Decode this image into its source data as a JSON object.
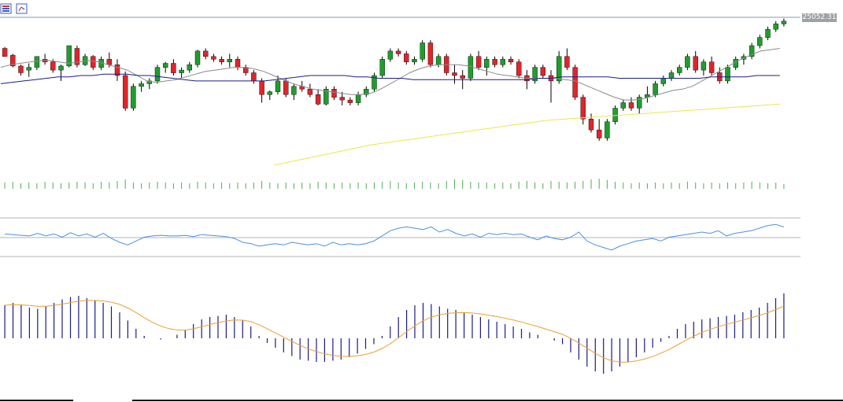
{
  "toolbar": {
    "icons": [
      "bar-list-icon",
      "chart-layout-icon"
    ]
  },
  "price_label": "25052.31",
  "colors": {
    "bull": "#1e9e2c",
    "bear": "#e0252a",
    "wick": "#000000",
    "ma_fast": "#8a8a8a",
    "ma_mid": "#1c1c8c",
    "ma_slow": "#e8e84a",
    "volume": "#4caf50",
    "rsi": "#4a90e2",
    "hist": "#1a1a8c",
    "signal": "#e8a030",
    "level": "#b0b4b8"
  },
  "chart_data": {
    "type": "candlestick",
    "y_range": [
      0,
      100
    ],
    "candles": [
      [
        86,
        87,
        80,
        80
      ],
      [
        81,
        82,
        72,
        73
      ],
      [
        73,
        74,
        66,
        68
      ],
      [
        70,
        75,
        65,
        72
      ],
      [
        72,
        80,
        70,
        80
      ],
      [
        78,
        82,
        74,
        76
      ],
      [
        76,
        78,
        68,
        70
      ],
      [
        70,
        74,
        62,
        73
      ],
      [
        73,
        88,
        72,
        88
      ],
      [
        86,
        88,
        72,
        74
      ],
      [
        74,
        82,
        73,
        80
      ],
      [
        80,
        81,
        70,
        72
      ],
      [
        72,
        80,
        70,
        78
      ],
      [
        78,
        83,
        72,
        74
      ],
      [
        74,
        78,
        62,
        66
      ],
      [
        66,
        69,
        40,
        42
      ],
      [
        42,
        60,
        40,
        58
      ],
      [
        58,
        62,
        54,
        60
      ],
      [
        60,
        64,
        56,
        62
      ],
      [
        62,
        74,
        60,
        72
      ],
      [
        72,
        76,
        68,
        75
      ],
      [
        75,
        78,
        66,
        68
      ],
      [
        68,
        72,
        64,
        70
      ],
      [
        70,
        76,
        68,
        74
      ],
      [
        74,
        85,
        72,
        84
      ],
      [
        84,
        86,
        78,
        80
      ],
      [
        80,
        82,
        76,
        78
      ],
      [
        78,
        80,
        74,
        76
      ],
      [
        76,
        82,
        72,
        78
      ],
      [
        78,
        80,
        70,
        72
      ],
      [
        72,
        74,
        66,
        68
      ],
      [
        68,
        70,
        60,
        62
      ],
      [
        62,
        64,
        46,
        52
      ],
      [
        52,
        55,
        48,
        54
      ],
      [
        54,
        66,
        52,
        62
      ],
      [
        62,
        64,
        50,
        52
      ],
      [
        52,
        60,
        48,
        58
      ],
      [
        58,
        62,
        54,
        56
      ],
      [
        56,
        60,
        50,
        52
      ],
      [
        52,
        56,
        44,
        45
      ],
      [
        45,
        58,
        44,
        56
      ],
      [
        56,
        58,
        48,
        50
      ],
      [
        50,
        54,
        44,
        48
      ],
      [
        48,
        50,
        44,
        46
      ],
      [
        46,
        54,
        44,
        52
      ],
      [
        52,
        58,
        50,
        56
      ],
      [
        56,
        68,
        54,
        66
      ],
      [
        66,
        80,
        64,
        78
      ],
      [
        78,
        86,
        76,
        84
      ],
      [
        84,
        86,
        80,
        82
      ],
      [
        82,
        84,
        74,
        76
      ],
      [
        76,
        80,
        74,
        78
      ],
      [
        78,
        92,
        76,
        90
      ],
      [
        90,
        92,
        72,
        74
      ],
      [
        74,
        82,
        72,
        80
      ],
      [
        80,
        82,
        66,
        68
      ],
      [
        68,
        74,
        60,
        66
      ],
      [
        66,
        70,
        56,
        64
      ],
      [
        64,
        82,
        62,
        80
      ],
      [
        80,
        84,
        70,
        72
      ],
      [
        72,
        80,
        66,
        78
      ],
      [
        78,
        80,
        72,
        74
      ],
      [
        74,
        80,
        72,
        78
      ],
      [
        78,
        80,
        74,
        76
      ],
      [
        76,
        78,
        64,
        66
      ],
      [
        66,
        70,
        56,
        62
      ],
      [
        62,
        74,
        60,
        72
      ],
      [
        72,
        74,
        64,
        66
      ],
      [
        66,
        70,
        46,
        62
      ],
      [
        62,
        84,
        60,
        80
      ],
      [
        80,
        86,
        70,
        72
      ],
      [
        72,
        74,
        48,
        50
      ],
      [
        50,
        52,
        30,
        34
      ],
      [
        34,
        38,
        24,
        26
      ],
      [
        26,
        34,
        18,
        20
      ],
      [
        20,
        34,
        18,
        32
      ],
      [
        32,
        44,
        30,
        42
      ],
      [
        42,
        48,
        40,
        46
      ],
      [
        46,
        50,
        40,
        42
      ],
      [
        42,
        52,
        38,
        50
      ],
      [
        50,
        58,
        46,
        52
      ],
      [
        52,
        62,
        50,
        60
      ],
      [
        60,
        66,
        58,
        64
      ],
      [
        64,
        70,
        62,
        68
      ],
      [
        68,
        74,
        66,
        72
      ],
      [
        72,
        82,
        70,
        80
      ],
      [
        80,
        84,
        68,
        70
      ],
      [
        70,
        78,
        66,
        76
      ],
      [
        76,
        80,
        66,
        68
      ],
      [
        68,
        72,
        60,
        62
      ],
      [
        62,
        74,
        60,
        72
      ],
      [
        72,
        80,
        70,
        78
      ],
      [
        78,
        82,
        74,
        80
      ],
      [
        80,
        90,
        78,
        88
      ],
      [
        88,
        96,
        86,
        94
      ],
      [
        94,
        102,
        92,
        100
      ],
      [
        100,
        106,
        98,
        104
      ],
      [
        104,
        108,
        102,
        106
      ]
    ],
    "ma_fast": [
      72,
      74,
      75,
      76,
      77,
      77,
      76,
      75,
      76,
      77,
      76,
      74,
      72,
      70,
      66,
      62,
      61,
      62,
      63,
      65,
      67,
      69,
      70,
      71,
      72,
      72,
      71,
      69,
      66,
      63,
      60,
      58,
      56,
      55,
      54,
      53,
      52,
      52,
      53,
      56,
      60,
      64,
      68,
      71,
      73,
      74,
      74,
      74,
      73,
      71,
      69,
      67,
      66,
      65,
      64,
      64,
      64,
      64,
      63,
      62,
      59,
      56,
      53,
      50,
      48,
      48,
      49,
      51,
      53,
      55,
      56,
      58,
      62,
      66,
      70,
      74,
      78,
      81,
      84,
      85,
      86
    ],
    "ma_mid": [
      60,
      61,
      62,
      63,
      64,
      65,
      65,
      66,
      66,
      67,
      67,
      67,
      66,
      66,
      65,
      64,
      63,
      62,
      62,
      62,
      62,
      62,
      62,
      62,
      63,
      64,
      65,
      66,
      66,
      66,
      66,
      65,
      65,
      64,
      64,
      64,
      63,
      63,
      63,
      63,
      63,
      63,
      63,
      63,
      63,
      63,
      63,
      64,
      64,
      65,
      65,
      65,
      65,
      65,
      64,
      64,
      64,
      64,
      64,
      64,
      64,
      64,
      65,
      65,
      65,
      65,
      66,
      66,
      66
    ],
    "ma_slow": [
      0,
      3,
      6,
      9,
      12,
      15,
      17,
      19,
      21,
      23,
      25,
      27,
      29,
      31,
      33,
      34,
      35,
      36,
      37,
      38,
      39,
      40,
      41,
      42,
      43,
      44,
      45
    ],
    "volume": [
      8,
      9,
      7,
      8,
      7,
      9,
      8,
      7,
      8,
      9,
      8,
      7,
      9,
      8,
      10,
      12,
      8,
      7,
      8,
      9,
      8,
      7,
      8,
      7,
      9,
      8,
      7,
      8,
      7,
      8,
      7,
      8,
      10,
      8,
      7,
      8,
      7,
      8,
      7,
      9,
      8,
      7,
      8,
      7,
      8,
      7,
      8,
      9,
      10,
      8,
      7,
      8,
      9,
      8,
      7,
      10,
      12,
      11,
      9,
      8,
      8,
      7,
      8,
      7,
      9,
      10,
      8,
      7,
      10,
      9,
      8,
      9,
      10,
      12,
      13,
      11,
      9,
      8,
      7,
      8,
      7,
      8,
      7,
      8,
      7,
      9,
      8,
      7,
      8,
      7,
      8,
      7,
      8,
      9,
      8,
      7,
      8,
      6
    ],
    "rsi": [
      55,
      54,
      53,
      52,
      56,
      52,
      55,
      50,
      57,
      52,
      55,
      50,
      56,
      48,
      42,
      38,
      44,
      50,
      52,
      53,
      52,
      52,
      53,
      51,
      54,
      53,
      52,
      51,
      48,
      42,
      40,
      36,
      38,
      40,
      38,
      42,
      40,
      38,
      40,
      36,
      42,
      38,
      40,
      38,
      40,
      44,
      52,
      60,
      64,
      66,
      64,
      62,
      66,
      58,
      62,
      56,
      52,
      55,
      50,
      56,
      54,
      56,
      54,
      55,
      50,
      46,
      52,
      48,
      46,
      50,
      58,
      44,
      38,
      34,
      30,
      36,
      40,
      44,
      46,
      48,
      44,
      50,
      52,
      54,
      56,
      58,
      56,
      60,
      52,
      56,
      58,
      60,
      64,
      68,
      70,
      66
    ],
    "hist": [
      28,
      30,
      28,
      26,
      25,
      27,
      30,
      33,
      35,
      36,
      34,
      32,
      30,
      27,
      22,
      15,
      8,
      2,
      0,
      -1,
      0,
      3,
      7,
      12,
      16,
      18,
      19,
      20,
      18,
      15,
      10,
      2,
      -4,
      -8,
      -12,
      -15,
      -18,
      -19,
      -20,
      -20,
      -19,
      -18,
      -16,
      -13,
      -9,
      -5,
      2,
      10,
      18,
      24,
      28,
      30,
      29,
      27,
      25,
      24,
      22,
      20,
      18,
      16,
      14,
      12,
      10,
      8,
      5,
      3,
      0,
      -2,
      -5,
      -12,
      -18,
      -24,
      -28,
      -30,
      -28,
      -24,
      -20,
      -16,
      -12,
      -8,
      -3,
      2,
      8,
      12,
      14,
      16,
      17,
      18,
      19,
      20,
      22,
      24,
      26,
      30,
      34,
      38
    ]
  }
}
